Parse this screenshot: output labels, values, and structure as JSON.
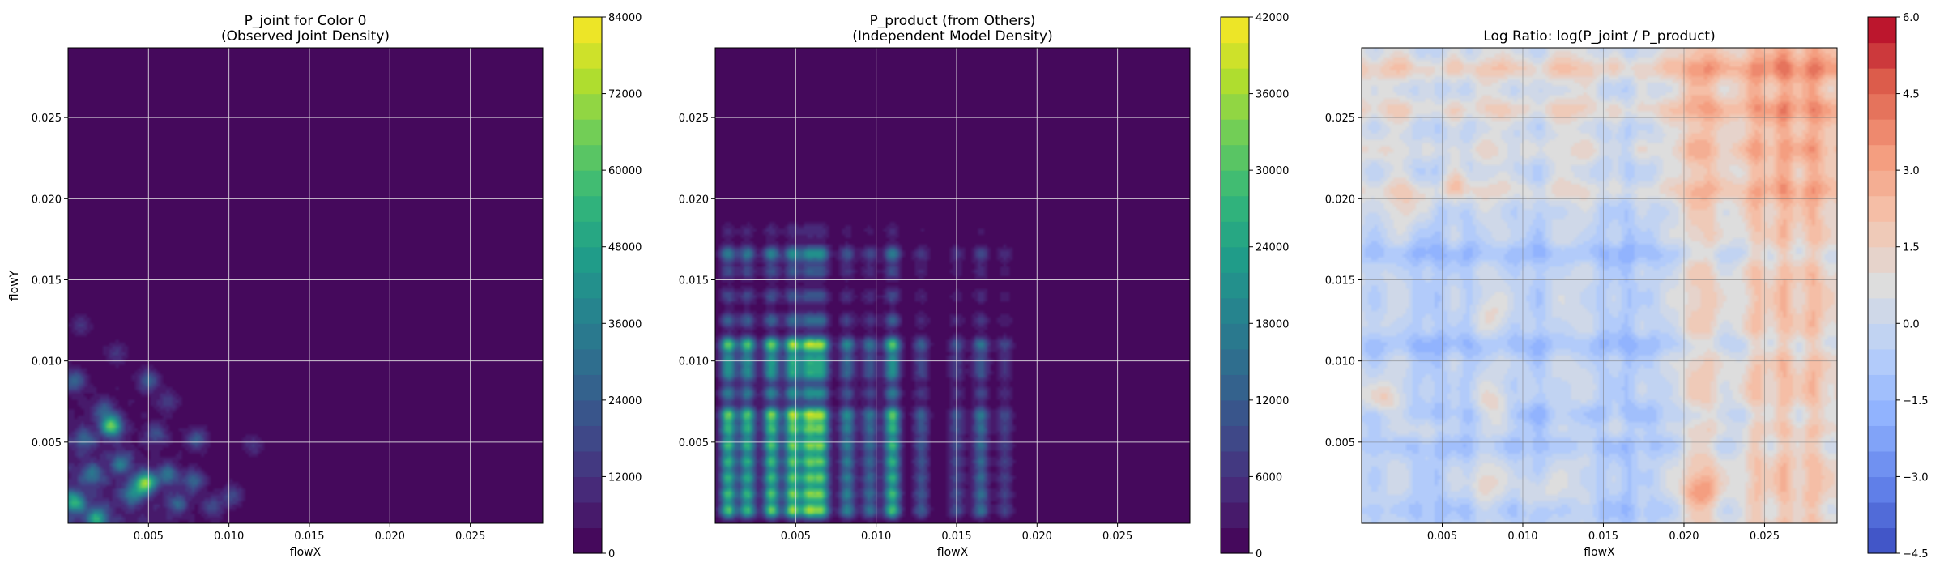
{
  "chart_data": [
    {
      "type": "heatmap",
      "title_line1": "P_joint for Color 0",
      "title_line2": "(Observed Joint Density)",
      "xlabel": "flowX",
      "ylabel": "flowY",
      "xlim": [
        0.0,
        0.0295
      ],
      "ylim": [
        0.0,
        0.0293
      ],
      "xticks": [
        0.005,
        0.01,
        0.015,
        0.02,
        0.025
      ],
      "xtick_labels": [
        "0.005",
        "0.010",
        "0.015",
        "0.020",
        "0.025"
      ],
      "yticks": [
        0.005,
        0.01,
        0.015,
        0.02,
        0.025
      ],
      "ytick_labels": [
        "0.005",
        "0.010",
        "0.015",
        "0.020",
        "0.025"
      ],
      "grid": true,
      "colormap": "viridis",
      "colorbar": {
        "min": 0,
        "max": 84000,
        "ticks": [
          0,
          12000,
          24000,
          36000,
          48000,
          60000,
          72000,
          84000
        ],
        "tick_labels": [
          "0",
          "12000",
          "24000",
          "36000",
          "48000",
          "60000",
          "72000",
          "84000"
        ],
        "levels": 21
      },
      "background_value": 0,
      "hotspots": [
        {
          "x": 0.0027,
          "y": 0.006,
          "v": 62000
        },
        {
          "x": 0.0048,
          "y": 0.0025,
          "v": 66000
        },
        {
          "x": 0.0004,
          "y": 0.0013,
          "v": 46000
        },
        {
          "x": 0.0004,
          "y": 0.0088,
          "v": 26000
        },
        {
          "x": 0.0018,
          "y": 0.0003,
          "v": 42000
        },
        {
          "x": 0.004,
          "y": 0.0018,
          "v": 32000
        },
        {
          "x": 0.0033,
          "y": 0.0037,
          "v": 28000
        },
        {
          "x": 0.005,
          "y": 0.0088,
          "v": 24000
        },
        {
          "x": 0.0062,
          "y": 0.003,
          "v": 30000
        },
        {
          "x": 0.0078,
          "y": 0.0026,
          "v": 26000
        },
        {
          "x": 0.008,
          "y": 0.0052,
          "v": 22000
        },
        {
          "x": 0.0102,
          "y": 0.0017,
          "v": 18000
        },
        {
          "x": 0.0022,
          "y": 0.007,
          "v": 20000
        },
        {
          "x": 0.001,
          "y": 0.0052,
          "v": 22000
        },
        {
          "x": 0.0015,
          "y": 0.003,
          "v": 26000
        },
        {
          "x": 0.0055,
          "y": 0.0055,
          "v": 18000
        },
        {
          "x": 0.0068,
          "y": 0.0012,
          "v": 24000
        },
        {
          "x": 0.009,
          "y": 0.001,
          "v": 18000
        },
        {
          "x": 0.0008,
          "y": 0.0122,
          "v": 12000
        },
        {
          "x": 0.0115,
          "y": 0.0048,
          "v": 12000
        },
        {
          "x": 0.003,
          "y": 0.0105,
          "v": 12000
        },
        {
          "x": 0.0062,
          "y": 0.0075,
          "v": 14000
        }
      ]
    },
    {
      "type": "heatmap",
      "title_line1": "P_product (from Others)",
      "title_line2": "(Independent Model Density)",
      "xlabel": "flowX",
      "ylabel": "",
      "xlim": [
        0.0,
        0.0295
      ],
      "ylim": [
        0.0,
        0.0293
      ],
      "xticks": [
        0.005,
        0.01,
        0.015,
        0.02,
        0.025
      ],
      "xtick_labels": [
        "0.005",
        "0.010",
        "0.015",
        "0.020",
        "0.025"
      ],
      "yticks": [
        0.005,
        0.01,
        0.015,
        0.02,
        0.025
      ],
      "ytick_labels": [
        "0.005",
        "0.010",
        "0.015",
        "0.020",
        "0.025"
      ],
      "grid": true,
      "colormap": "viridis",
      "colorbar": {
        "min": 0,
        "max": 42000,
        "ticks": [
          0,
          6000,
          12000,
          18000,
          24000,
          30000,
          36000,
          42000
        ],
        "tick_labels": [
          "0",
          "6000",
          "12000",
          "18000",
          "24000",
          "30000",
          "36000",
          "42000"
        ],
        "levels": 21
      },
      "background_value": 0,
      "x_peaks": [
        0.0008,
        0.002,
        0.0035,
        0.0048,
        0.0058,
        0.0066,
        0.0082,
        0.0096,
        0.011,
        0.0128,
        0.015,
        0.0165,
        0.018
      ],
      "x_peak_weights": [
        0.85,
        0.8,
        0.9,
        1.0,
        0.95,
        0.9,
        0.55,
        0.45,
        0.85,
        0.35,
        0.3,
        0.45,
        0.25
      ],
      "y_peaks": [
        0.0008,
        0.0018,
        0.0028,
        0.0038,
        0.0048,
        0.0058,
        0.0067,
        0.008,
        0.0092,
        0.01,
        0.011,
        0.0125,
        0.014,
        0.0155,
        0.0166,
        0.018
      ],
      "y_peak_weights": [
        0.9,
        0.85,
        0.8,
        0.8,
        0.85,
        0.8,
        0.95,
        0.55,
        0.6,
        0.6,
        0.95,
        0.4,
        0.3,
        0.3,
        0.55,
        0.15
      ],
      "peak_value": 40000
    },
    {
      "type": "heatmap",
      "title_line1": "Log Ratio: log(P_joint / P_product)",
      "title_line2": "",
      "xlabel": "flowX",
      "ylabel": "",
      "xlim": [
        0.0,
        0.0295
      ],
      "ylim": [
        0.0,
        0.0293
      ],
      "xticks": [
        0.005,
        0.01,
        0.015,
        0.02,
        0.025
      ],
      "xtick_labels": [
        "0.005",
        "0.010",
        "0.015",
        "0.020",
        "0.025"
      ],
      "yticks": [
        0.005,
        0.01,
        0.015,
        0.02,
        0.025
      ],
      "ytick_labels": [
        "0.005",
        "0.010",
        "0.015",
        "0.020",
        "0.025"
      ],
      "grid": true,
      "colormap": "coolwarm",
      "colorbar": {
        "min": -4.5,
        "max": 6.0,
        "ticks": [
          -4.5,
          -3.0,
          -1.5,
          0.0,
          1.5,
          3.0,
          4.5,
          6.0
        ],
        "tick_labels": [
          "−4.5",
          "−3.0",
          "−1.5",
          "0.0",
          "1.5",
          "3.0",
          "4.5",
          "6.0"
        ],
        "levels": 21
      },
      "background_value": 0.2,
      "x_bands": [
        {
          "x": 0.0008,
          "d": -0.6
        },
        {
          "x": 0.0035,
          "d": -0.9
        },
        {
          "x": 0.0048,
          "d": -1.1
        },
        {
          "x": 0.0066,
          "d": -0.9
        },
        {
          "x": 0.0096,
          "d": -0.6
        },
        {
          "x": 0.011,
          "d": -1.0
        },
        {
          "x": 0.015,
          "d": -0.9
        },
        {
          "x": 0.0165,
          "d": -1.2
        },
        {
          "x": 0.018,
          "d": -0.6
        },
        {
          "x": 0.0205,
          "d": 1.0
        },
        {
          "x": 0.0215,
          "d": 1.2
        },
        {
          "x": 0.0245,
          "d": 1.4
        },
        {
          "x": 0.0262,
          "d": 1.6
        },
        {
          "x": 0.028,
          "d": 1.4
        }
      ],
      "y_bands": [
        {
          "y": 0.0008,
          "d": -0.6
        },
        {
          "y": 0.0048,
          "d": -0.8
        },
        {
          "y": 0.0067,
          "d": -0.9
        },
        {
          "y": 0.011,
          "d": -1.0
        },
        {
          "y": 0.0166,
          "d": -1.0
        },
        {
          "y": 0.0205,
          "d": 1.0
        },
        {
          "y": 0.023,
          "d": 0.8
        },
        {
          "y": 0.0255,
          "d": 1.2
        },
        {
          "y": 0.028,
          "d": 1.4
        }
      ],
      "local_blobs": [
        {
          "x": 0.0012,
          "y": 0.0075,
          "d": 1.8
        },
        {
          "x": 0.004,
          "y": 0.006,
          "d": 1.4
        },
        {
          "x": 0.008,
          "y": 0.007,
          "d": 1.6
        },
        {
          "x": 0.0075,
          "y": 0.0025,
          "d": 1.4
        },
        {
          "x": 0.011,
          "y": 0.002,
          "d": 1.2
        },
        {
          "x": 0.021,
          "y": 0.002,
          "d": 1.8
        },
        {
          "x": 0.003,
          "y": 0.0195,
          "d": 1.6
        },
        {
          "x": 0.006,
          "y": 0.021,
          "d": 1.2
        },
        {
          "x": 0.016,
          "y": 0.006,
          "d": 1.0
        },
        {
          "x": 0.008,
          "y": 0.013,
          "d": 0.9
        }
      ]
    }
  ]
}
